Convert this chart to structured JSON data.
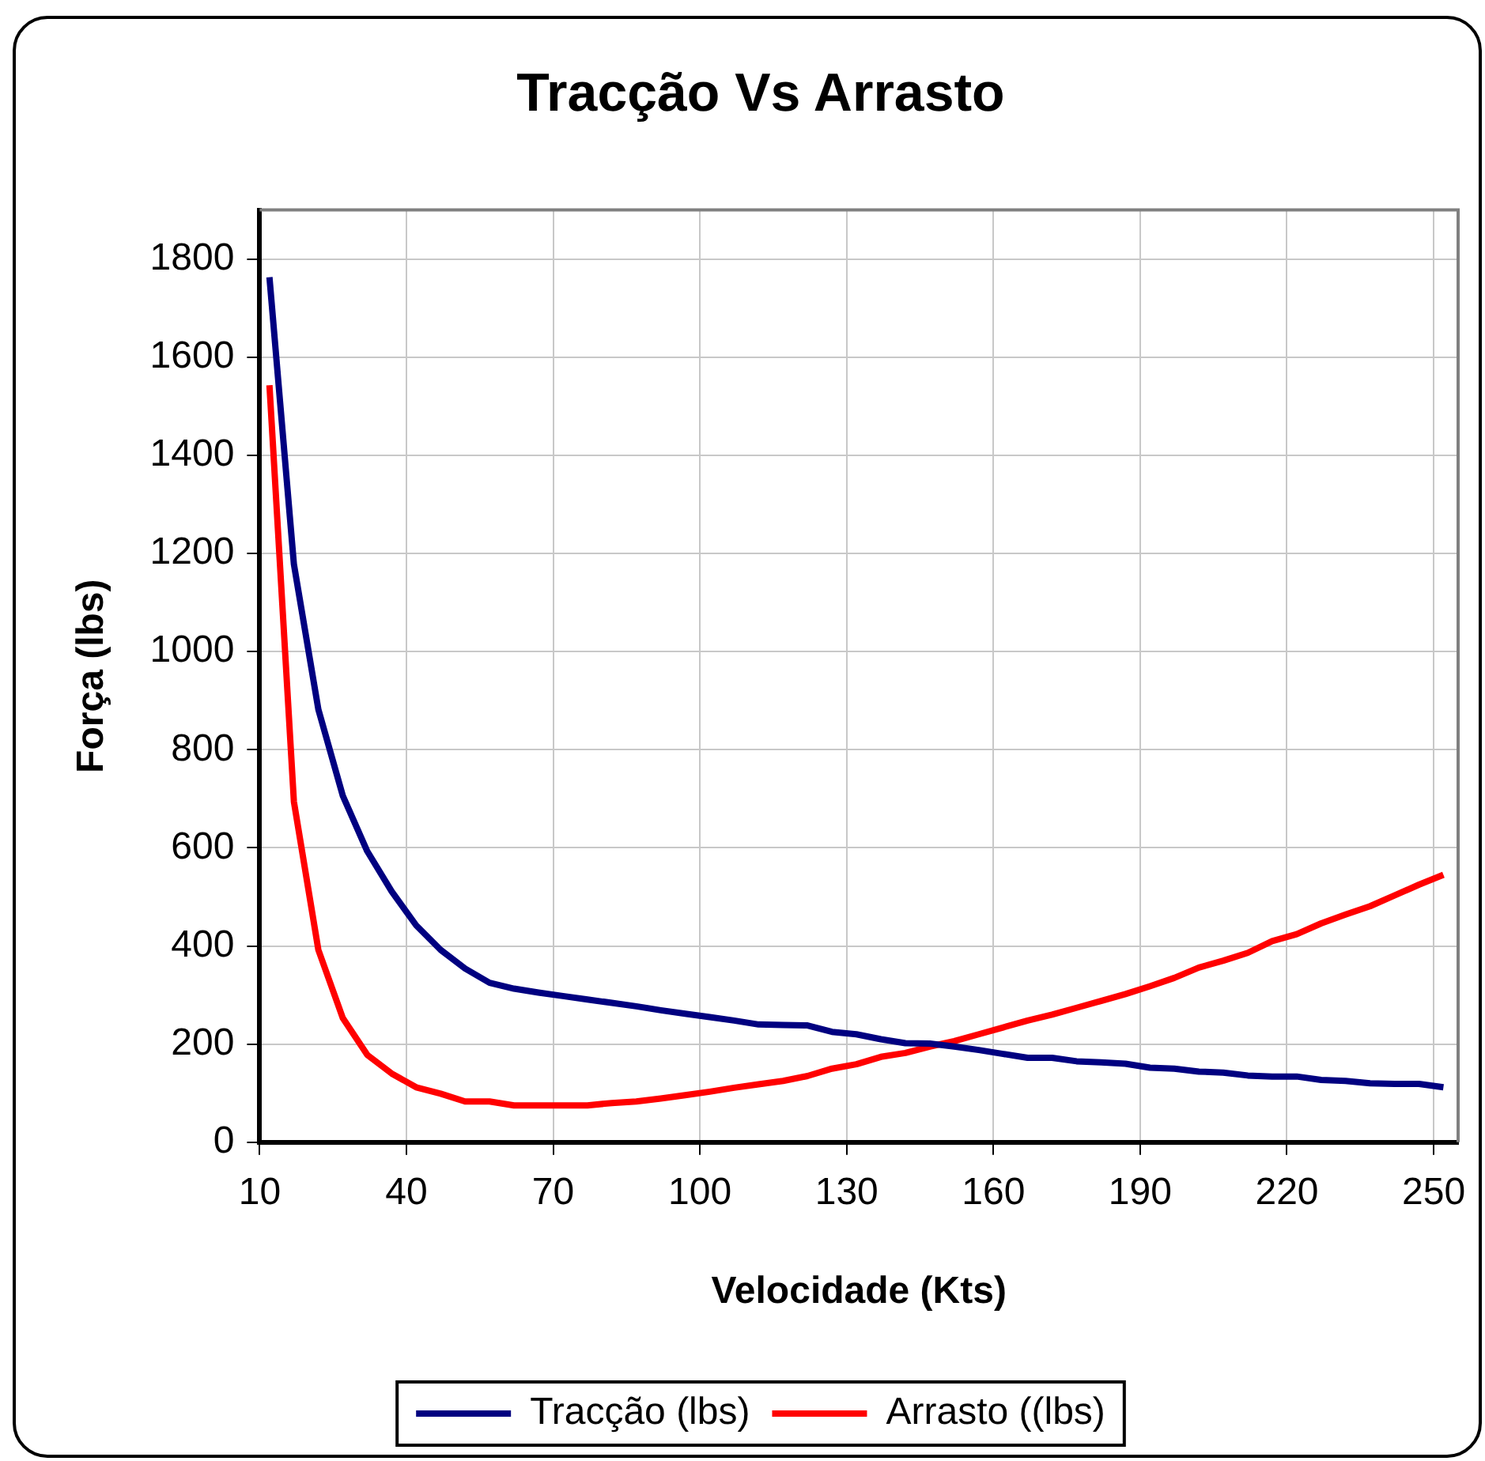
{
  "chart_data": {
    "type": "line",
    "title": "Tracção Vs Arrasto",
    "xlabel": "Velocidade (Kts)",
    "ylabel": "Força (lbs)",
    "x": [
      12,
      17,
      22,
      27,
      32,
      37,
      42,
      47,
      52,
      57,
      62,
      67,
      72,
      77,
      82,
      87,
      92,
      97,
      102,
      107,
      112,
      117,
      122,
      127,
      132,
      137,
      142,
      147,
      152,
      157,
      162,
      167,
      172,
      177,
      182,
      187,
      192,
      197,
      202,
      207,
      212,
      217,
      222,
      227,
      232,
      237,
      242,
      247,
      252
    ],
    "series": [
      {
        "name": "Tracção (lbs)",
        "color": "#000080",
        "values": [
          1763,
          1178,
          882,
          706,
          593,
          511,
          442,
          392,
          354,
          325,
          313,
          305,
          298,
          291,
          284,
          277,
          269,
          262,
          255,
          248,
          240,
          239,
          238,
          225,
          220,
          210,
          202,
          201,
          195,
          188,
          180,
          172,
          172,
          165,
          163,
          160,
          152,
          150,
          144,
          142,
          136,
          134,
          134,
          127,
          125,
          120,
          119,
          119,
          112
        ]
      },
      {
        "name": "Arrasto ((lbs)",
        "color": "#ff0000",
        "values": [
          1543,
          694,
          392,
          253,
          178,
          140,
          112,
          99,
          83,
          83,
          75,
          75,
          75,
          75,
          80,
          83,
          89,
          96,
          103,
          111,
          118,
          125,
          135,
          150,
          159,
          174,
          182,
          195,
          206,
          220,
          234,
          248,
          260,
          274,
          288,
          302,
          318,
          335,
          356,
          370,
          386,
          410,
          424,
          446,
          464,
          481,
          503,
          525,
          545
        ]
      }
    ],
    "xlim": [
      10,
      255
    ],
    "xticks": [
      10,
      40,
      70,
      100,
      130,
      160,
      190,
      220,
      250
    ],
    "ylim": [
      0,
      1900
    ],
    "yticks": [
      0,
      200,
      400,
      600,
      800,
      1000,
      1200,
      1400,
      1600,
      1800
    ],
    "grid": true,
    "legend": "bottom",
    "marker": "none",
    "line_style": "solid"
  }
}
